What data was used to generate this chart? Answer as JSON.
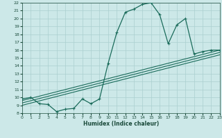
{
  "xlabel": "Humidex (Indice chaleur)",
  "xlim": [
    0,
    23
  ],
  "ylim": [
    8,
    22
  ],
  "xticks": [
    0,
    1,
    2,
    3,
    4,
    5,
    6,
    7,
    8,
    9,
    10,
    11,
    12,
    13,
    14,
    15,
    16,
    17,
    18,
    19,
    20,
    21,
    22,
    23
  ],
  "yticks": [
    8,
    9,
    10,
    11,
    12,
    13,
    14,
    15,
    16,
    17,
    18,
    19,
    20,
    21,
    22
  ],
  "bg_color": "#cce8e8",
  "grid_color": "#aacfcf",
  "line_color": "#1a6b5a",
  "curve_x": [
    0,
    1,
    2,
    3,
    4,
    5,
    6,
    7,
    8,
    9,
    10,
    11,
    12,
    13,
    14,
    15,
    16,
    17,
    18,
    19,
    20,
    21,
    22,
    23
  ],
  "curve_y": [
    9.8,
    10.0,
    9.2,
    9.1,
    8.2,
    8.5,
    8.6,
    9.8,
    9.2,
    9.8,
    14.3,
    18.2,
    20.8,
    21.2,
    21.8,
    22.0,
    20.5,
    16.8,
    19.2,
    20.0,
    15.5,
    15.8,
    16.0,
    16.0
  ],
  "line1_x": [
    0,
    23
  ],
  "line1_y": [
    9.6,
    16.0
  ],
  "line2_x": [
    0,
    23
  ],
  "line2_y": [
    9.3,
    15.7
  ],
  "line3_x": [
    0,
    23
  ],
  "line3_y": [
    9.0,
    15.4
  ]
}
